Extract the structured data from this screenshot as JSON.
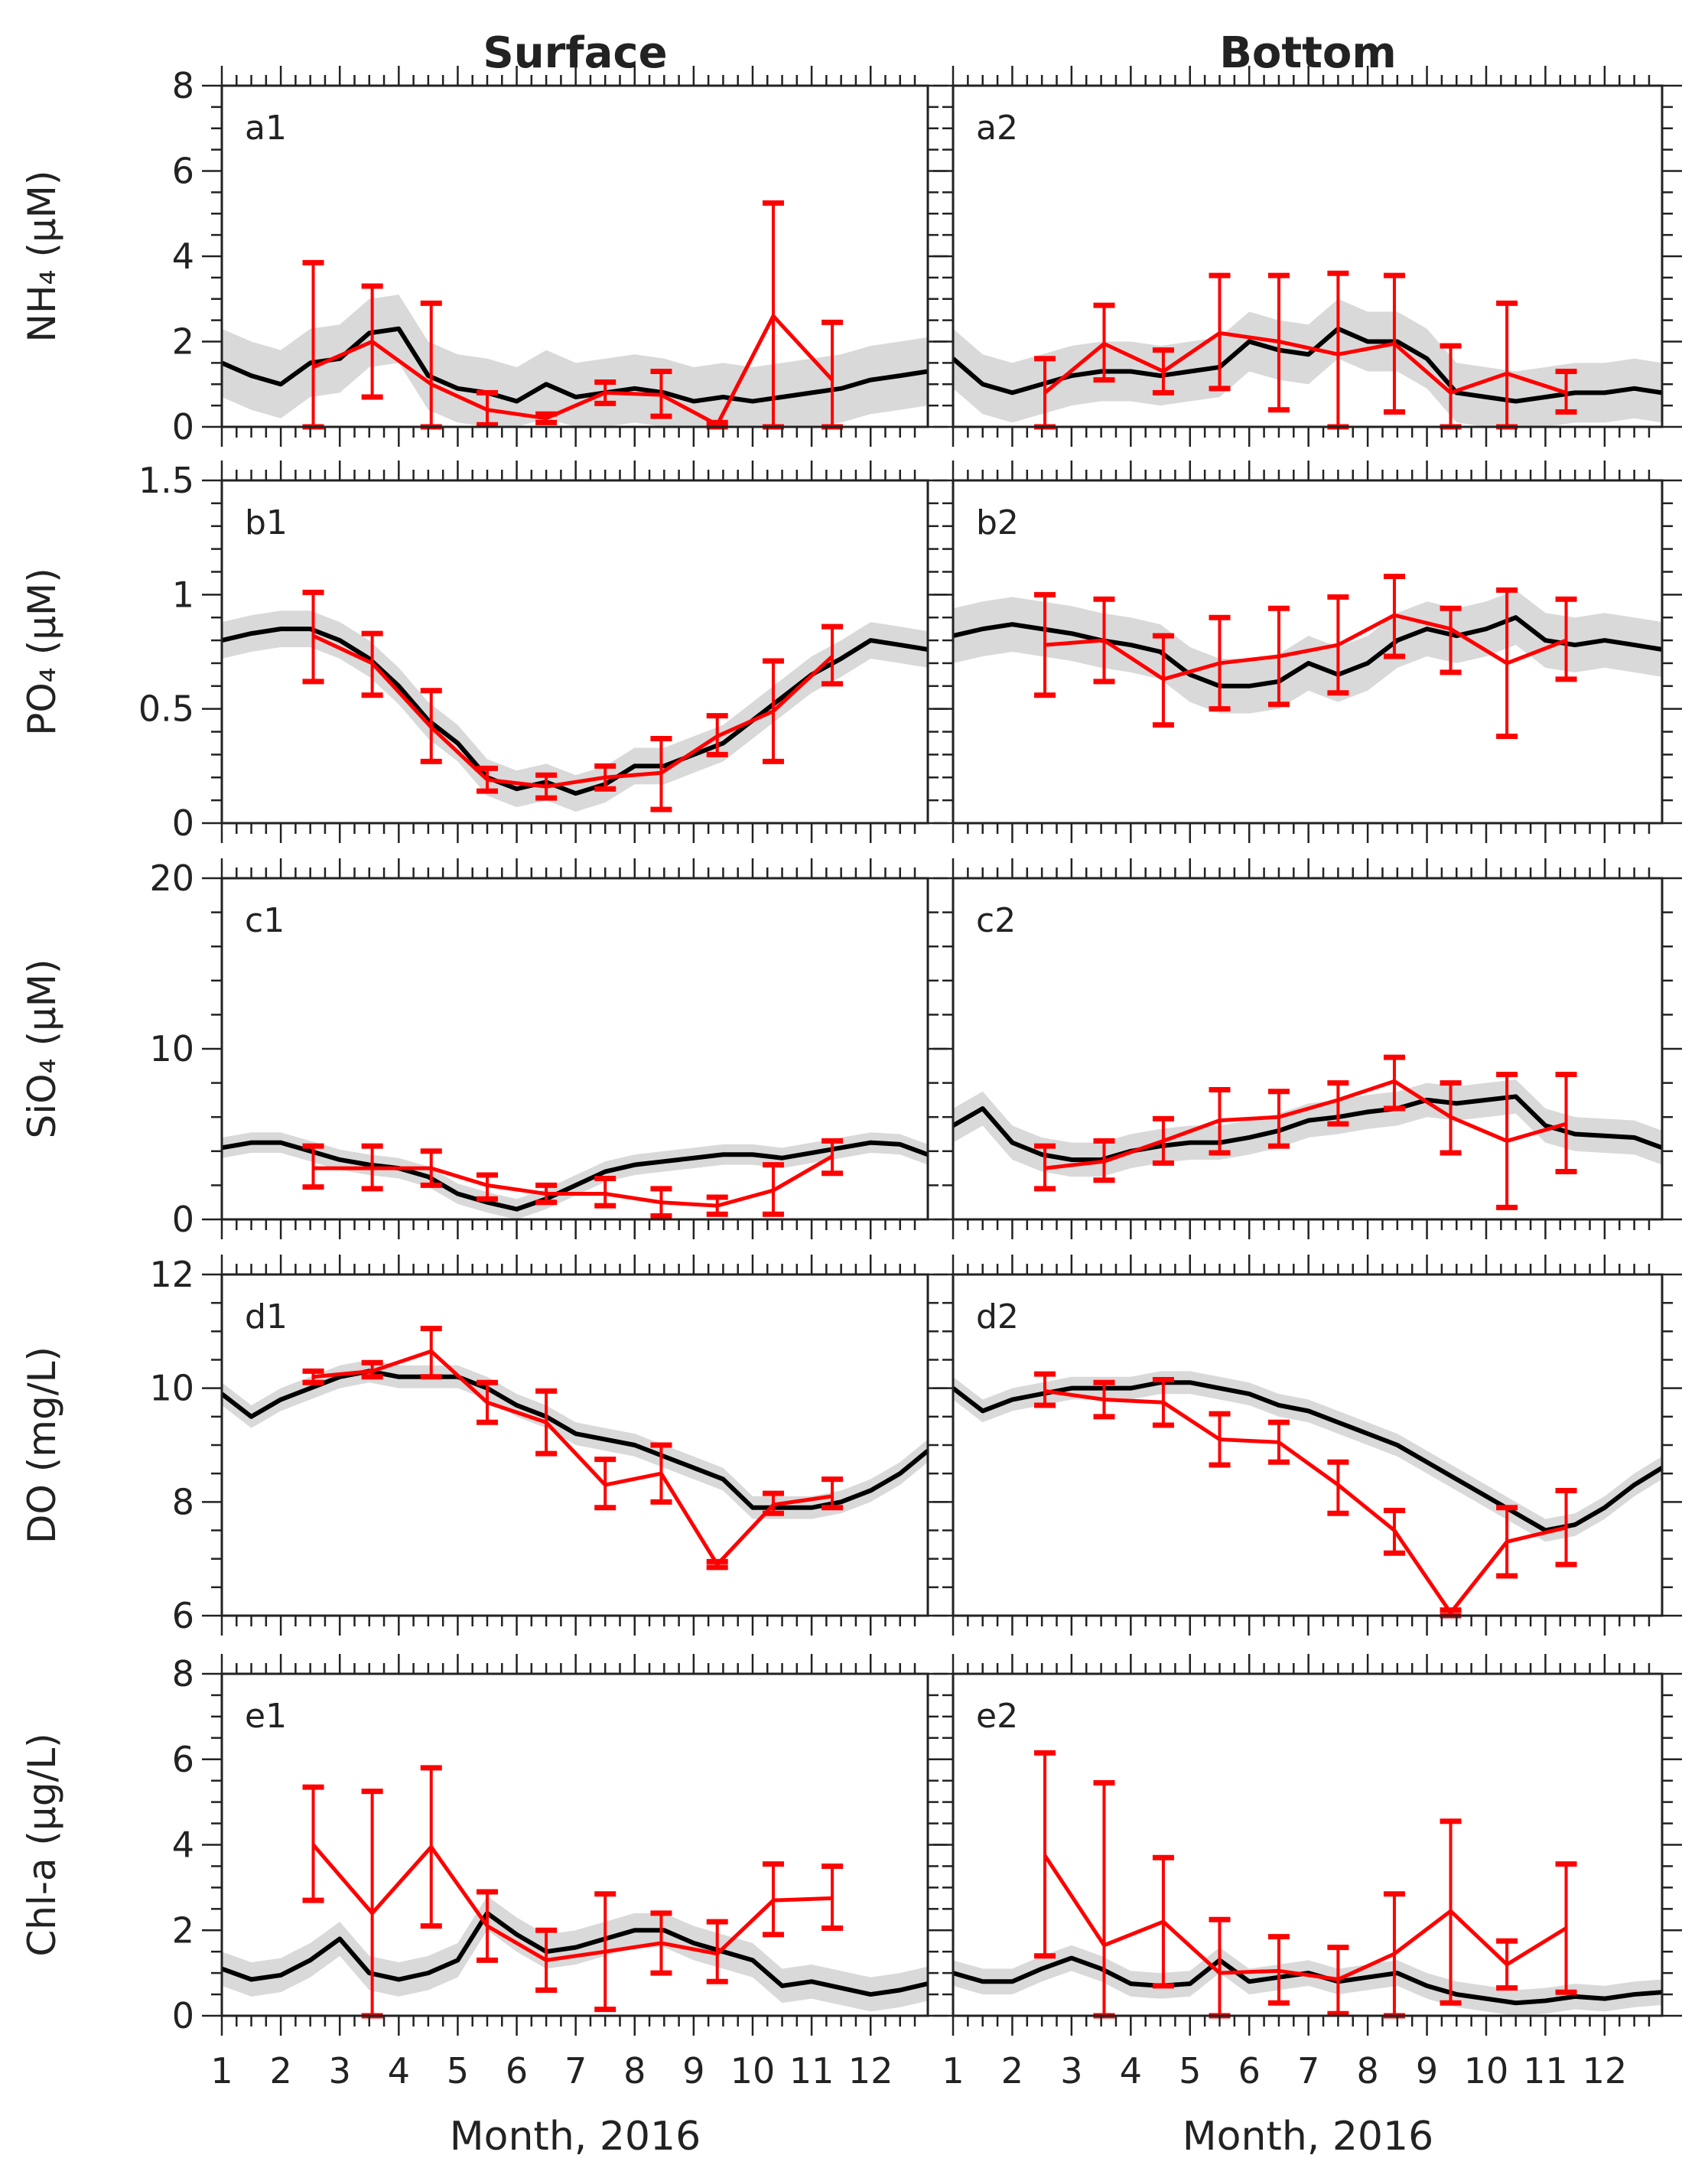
{
  "chart_data": {
    "type": "line",
    "column_titles": [
      "Surface",
      "Bottom"
    ],
    "xlabel": "Month, 2016",
    "xlim": [
      1,
      12.97
    ],
    "x_ticks": [
      1,
      2,
      3,
      4,
      5,
      6,
      7,
      8,
      9,
      10,
      11,
      12
    ],
    "x_tick_labels": [
      "1",
      "2",
      "3",
      "4",
      "5",
      "6",
      "7",
      "8",
      "9",
      "10",
      "11",
      "12"
    ],
    "model_x": [
      1,
      1.5,
      2,
      2.5,
      3,
      3.5,
      4,
      4.5,
      5,
      5.5,
      6,
      6.5,
      7,
      7.5,
      8,
      8.5,
      9,
      9.5,
      10,
      10.5,
      11,
      11.5,
      12,
      12.5,
      13
    ],
    "obs_x": [
      2.55,
      3.55,
      4.55,
      5.5,
      6.5,
      7.5,
      8.45,
      9.4,
      10.35,
      11.35
    ],
    "colors": {
      "model": "#000000",
      "model_band": "#d9d9d9",
      "obs": "#ff0000"
    },
    "rows": [
      {
        "ylabel": "NH₄ (μM)",
        "ylim": [
          0,
          8
        ],
        "y_ticks": [
          0,
          2,
          4,
          6,
          8
        ],
        "y_tick_labels": [
          "0",
          "2",
          "4",
          "6",
          "8"
        ],
        "y_minor": 0.5,
        "panels": [
          {
            "label": "a1",
            "band_spread": 0.8,
            "model": [
              1.5,
              1.2,
              1.0,
              1.5,
              1.6,
              2.2,
              2.3,
              1.2,
              0.9,
              0.8,
              0.6,
              1.0,
              0.7,
              0.8,
              0.9,
              0.8,
              0.6,
              0.7,
              0.6,
              0.7,
              0.8,
              0.9,
              1.1,
              1.2,
              1.3
            ],
            "obs_mean": [
              1.4,
              2.0,
              1.0,
              0.4,
              0.2,
              0.8,
              0.75,
              0.05,
              2.6,
              1.1
            ],
            "obs_lo": [
              0,
              0.7,
              0,
              0.05,
              0.1,
              0.55,
              0.25,
              0,
              0,
              0
            ],
            "obs_hi": [
              3.85,
              3.3,
              2.9,
              0.8,
              0.3,
              1.05,
              1.3,
              0.1,
              5.25,
              2.45
            ]
          },
          {
            "label": "a2",
            "band_spread": 0.7,
            "model": [
              1.6,
              1.0,
              0.8,
              1.0,
              1.2,
              1.3,
              1.3,
              1.2,
              1.3,
              1.4,
              2.0,
              1.8,
              1.7,
              2.3,
              2.0,
              2.0,
              1.6,
              0.8,
              0.7,
              0.6,
              0.7,
              0.8,
              0.8,
              0.9,
              0.8
            ],
            "obs_mean": [
              0.8,
              1.95,
              1.3,
              2.2,
              2.0,
              1.7,
              1.95,
              0.8,
              1.25,
              0.8
            ],
            "obs_lo": [
              0,
              1.1,
              0.8,
              0.9,
              0.4,
              0,
              0.35,
              0,
              0,
              0.35
            ],
            "obs_hi": [
              1.6,
              2.85,
              1.8,
              3.55,
              3.55,
              3.6,
              3.55,
              1.9,
              2.9,
              1.3
            ]
          }
        ]
      },
      {
        "ylabel": "PO₄ (μM)",
        "ylim": [
          0,
          1.5
        ],
        "y_ticks": [
          0,
          0.5,
          1,
          1.5
        ],
        "y_tick_labels": [
          "0",
          "0.5",
          "1",
          "1.5"
        ],
        "y_minor": 0.1,
        "panels": [
          {
            "label": "b1",
            "band_spread": 0.08,
            "model": [
              0.8,
              0.83,
              0.85,
              0.85,
              0.8,
              0.72,
              0.6,
              0.45,
              0.35,
              0.2,
              0.15,
              0.18,
              0.13,
              0.17,
              0.25,
              0.25,
              0.3,
              0.35,
              0.45,
              0.55,
              0.65,
              0.72,
              0.8,
              0.78,
              0.76
            ],
            "obs_mean": [
              0.82,
              0.7,
              0.42,
              0.19,
              0.16,
              0.2,
              0.22,
              0.38,
              0.49,
              0.73
            ],
            "obs_lo": [
              0.62,
              0.56,
              0.27,
              0.14,
              0.11,
              0.15,
              0.06,
              0.3,
              0.27,
              0.61
            ],
            "obs_hi": [
              1.01,
              0.83,
              0.58,
              0.24,
              0.21,
              0.25,
              0.37,
              0.47,
              0.71,
              0.86
            ]
          },
          {
            "label": "b2",
            "band_spread": 0.12,
            "model": [
              0.82,
              0.85,
              0.87,
              0.85,
              0.83,
              0.8,
              0.78,
              0.75,
              0.65,
              0.6,
              0.6,
              0.62,
              0.7,
              0.65,
              0.7,
              0.8,
              0.85,
              0.82,
              0.85,
              0.9,
              0.8,
              0.78,
              0.8,
              0.78,
              0.76
            ],
            "obs_mean": [
              0.78,
              0.8,
              0.63,
              0.7,
              0.73,
              0.78,
              0.91,
              0.85,
              0.7,
              0.8
            ],
            "obs_lo": [
              0.56,
              0.62,
              0.43,
              0.5,
              0.52,
              0.57,
              0.73,
              0.66,
              0.38,
              0.63
            ],
            "obs_hi": [
              1.0,
              0.98,
              0.82,
              0.9,
              0.94,
              0.99,
              1.08,
              0.94,
              1.02,
              0.98
            ]
          }
        ]
      },
      {
        "ylabel": "SiO₄ (μM)",
        "ylim": [
          0,
          20
        ],
        "y_ticks": [
          0,
          10,
          20
        ],
        "y_tick_labels": [
          "0",
          "10",
          "20"
        ],
        "y_minor": 2,
        "panels": [
          {
            "label": "c1",
            "band_spread": 0.6,
            "model": [
              4.2,
              4.5,
              4.5,
              4.0,
              3.5,
              3.2,
              3.0,
              2.5,
              1.5,
              1.0,
              0.6,
              1.2,
              2.0,
              2.8,
              3.2,
              3.4,
              3.6,
              3.8,
              3.8,
              3.6,
              3.9,
              4.2,
              4.5,
              4.4,
              3.8
            ],
            "obs_mean": [
              3.0,
              3.0,
              3.0,
              2.0,
              1.5,
              1.5,
              1.0,
              0.8,
              1.7,
              3.7
            ],
            "obs_lo": [
              1.9,
              1.8,
              2.0,
              1.2,
              1.0,
              0.8,
              0.2,
              0.3,
              0.3,
              2.7
            ],
            "obs_hi": [
              4.3,
              4.3,
              4.0,
              2.6,
              2.0,
              2.4,
              1.8,
              1.3,
              3.2,
              4.6
            ]
          },
          {
            "label": "c2",
            "band_spread": 1.0,
            "model": [
              5.5,
              6.5,
              4.5,
              3.8,
              3.5,
              3.5,
              4.0,
              4.3,
              4.5,
              4.5,
              4.8,
              5.2,
              5.8,
              6.0,
              6.3,
              6.5,
              7.0,
              6.8,
              7.0,
              7.2,
              5.5,
              5.0,
              4.9,
              4.8,
              4.2
            ],
            "obs_mean": [
              3.0,
              3.4,
              4.6,
              5.8,
              6.0,
              7.0,
              8.1,
              6.0,
              4.6,
              5.6
            ],
            "obs_lo": [
              1.8,
              2.3,
              3.3,
              3.9,
              4.3,
              5.6,
              6.5,
              3.9,
              0.7,
              2.8
            ],
            "obs_hi": [
              4.3,
              4.6,
              5.9,
              7.6,
              7.5,
              8.0,
              9.5,
              8.0,
              8.5,
              8.5
            ]
          }
        ]
      },
      {
        "ylabel": "DO (mg/L)",
        "ylim": [
          6,
          12
        ],
        "y_ticks": [
          6,
          8,
          10,
          12
        ],
        "y_tick_labels": [
          "6",
          "8",
          "10",
          "12"
        ],
        "y_minor": 0.5,
        "panels": [
          {
            "label": "d1",
            "band_spread": 0.2,
            "model": [
              9.9,
              9.5,
              9.8,
              10.0,
              10.2,
              10.3,
              10.2,
              10.2,
              10.2,
              10.0,
              9.7,
              9.5,
              9.2,
              9.1,
              9.0,
              8.8,
              8.6,
              8.4,
              7.9,
              7.9,
              7.9,
              8.0,
              8.2,
              8.5,
              8.9
            ],
            "obs_mean": [
              10.2,
              10.3,
              10.65,
              9.75,
              9.4,
              8.3,
              8.5,
              6.9,
              7.95,
              8.1
            ],
            "obs_lo": [
              10.1,
              10.2,
              10.2,
              9.4,
              8.85,
              7.9,
              8.0,
              6.85,
              7.8,
              7.9
            ],
            "obs_hi": [
              10.3,
              10.45,
              11.05,
              10.1,
              9.95,
              8.75,
              9.0,
              6.95,
              8.15,
              8.4
            ]
          },
          {
            "label": "d2",
            "band_spread": 0.2,
            "model": [
              10.0,
              9.6,
              9.8,
              9.9,
              10.0,
              10.0,
              10.0,
              10.1,
              10.1,
              10.0,
              9.9,
              9.7,
              9.6,
              9.4,
              9.2,
              9.0,
              8.7,
              8.4,
              8.1,
              7.8,
              7.5,
              7.6,
              7.9,
              8.3,
              8.6
            ],
            "obs_mean": [
              9.95,
              9.8,
              9.75,
              9.1,
              9.05,
              8.3,
              7.5,
              6.05,
              7.3,
              7.55
            ],
            "obs_lo": [
              9.7,
              9.5,
              9.35,
              8.65,
              8.7,
              7.8,
              7.1,
              6.0,
              6.7,
              6.9
            ],
            "obs_hi": [
              10.25,
              10.1,
              10.15,
              9.55,
              9.4,
              8.7,
              7.85,
              6.1,
              7.9,
              8.2
            ]
          }
        ]
      },
      {
        "ylabel": "Chl-a (μg/L)",
        "ylim": [
          0,
          8
        ],
        "y_ticks": [
          0,
          2,
          4,
          6,
          8
        ],
        "y_tick_labels": [
          "0",
          "2",
          "4",
          "6",
          "8"
        ],
        "y_minor": 0.5,
        "panels": [
          {
            "label": "e1",
            "band_spread": 0.4,
            "model": [
              1.1,
              0.85,
              0.95,
              1.3,
              1.8,
              1.0,
              0.85,
              1.0,
              1.3,
              2.4,
              1.9,
              1.5,
              1.6,
              1.8,
              2.0,
              2.0,
              1.7,
              1.5,
              1.3,
              0.7,
              0.8,
              0.65,
              0.5,
              0.6,
              0.75
            ],
            "obs_mean": [
              4.0,
              2.4,
              3.95,
              2.1,
              1.3,
              1.5,
              1.7,
              1.45,
              2.7,
              2.75
            ],
            "obs_lo": [
              2.7,
              0,
              2.1,
              1.3,
              0.6,
              0.15,
              1.0,
              0.8,
              1.9,
              2.05
            ],
            "obs_hi": [
              5.35,
              5.25,
              5.8,
              2.9,
              2.0,
              2.85,
              2.4,
              2.2,
              3.55,
              3.5
            ]
          },
          {
            "label": "e2",
            "band_spread": 0.3,
            "model": [
              1.0,
              0.8,
              0.8,
              1.1,
              1.35,
              1.1,
              0.75,
              0.7,
              0.75,
              1.3,
              0.8,
              0.9,
              1.0,
              0.8,
              0.9,
              1.0,
              0.7,
              0.5,
              0.4,
              0.3,
              0.35,
              0.45,
              0.4,
              0.5,
              0.55
            ],
            "obs_mean": [
              3.75,
              1.65,
              2.2,
              1.0,
              1.05,
              0.85,
              1.45,
              2.45,
              1.2,
              2.05
            ],
            "obs_lo": [
              1.4,
              0,
              0.7,
              0,
              0.3,
              0.05,
              0,
              0.3,
              0.65,
              0.55
            ],
            "obs_hi": [
              6.15,
              5.45,
              3.7,
              2.25,
              1.85,
              1.6,
              2.85,
              4.55,
              1.75,
              3.55
            ]
          }
        ]
      }
    ]
  }
}
